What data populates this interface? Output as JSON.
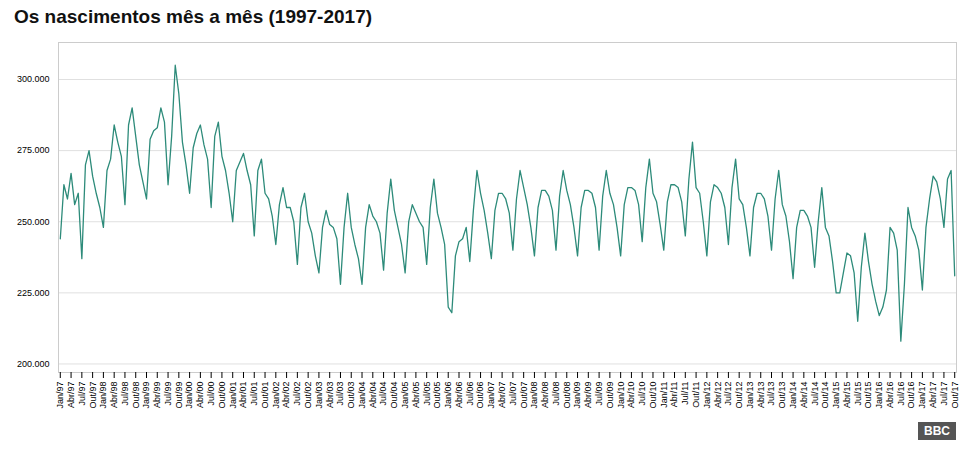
{
  "chart_data": {
    "type": "line",
    "title": "Os nascimentos mês a mês (1997-2017)",
    "color": "#2d8b7a",
    "grid": true,
    "ylim": [
      197000,
      313000
    ],
    "yticks": [
      {
        "value": 200000,
        "label": "200.000"
      },
      {
        "value": 225000,
        "label": "225.000"
      },
      {
        "value": 250000,
        "label": "250.000"
      },
      {
        "value": 275000,
        "label": "275.000"
      },
      {
        "value": 300000,
        "label": "300.000"
      }
    ],
    "annotations": [
      {
        "text": "BBC"
      }
    ],
    "categories": [
      "Jan/97",
      null,
      null,
      "Abr/97",
      null,
      null,
      "Jul/97",
      null,
      null,
      "Out/97",
      null,
      null,
      "Jan/98",
      null,
      null,
      "Abr/98",
      null,
      null,
      "Jul/98",
      null,
      null,
      "Out/98",
      null,
      null,
      "Jan/99",
      null,
      null,
      "Abr/99",
      null,
      null,
      "Jul/99",
      null,
      null,
      "Out/99",
      null,
      null,
      "Jan/00",
      null,
      null,
      "Abr/00",
      null,
      null,
      "Jul/00",
      null,
      null,
      "Out/00",
      null,
      null,
      "Jan/01",
      null,
      null,
      "Abr/01",
      null,
      null,
      "Jul/01",
      null,
      null,
      "Out/01",
      null,
      null,
      "Jan/02",
      null,
      null,
      "Abr/02",
      null,
      null,
      "Jul/02",
      null,
      null,
      "Out/02",
      null,
      null,
      "Jan/03",
      null,
      null,
      "Abr/03",
      null,
      null,
      "Jul/03",
      null,
      null,
      "Out/03",
      null,
      null,
      "Jan/04",
      null,
      null,
      "Abr/04",
      null,
      null,
      "Jul/04",
      null,
      null,
      "Out/04",
      null,
      null,
      "Jan/05",
      null,
      null,
      "Abr/05",
      null,
      null,
      "Jul/05",
      null,
      null,
      "Out/05",
      null,
      null,
      "Jan/06",
      null,
      null,
      "Abr/06",
      null,
      null,
      "Jul/06",
      null,
      null,
      "Out/06",
      null,
      null,
      "Jan/07",
      null,
      null,
      "Abr/07",
      null,
      null,
      "Jul/07",
      null,
      null,
      "Out/07",
      null,
      null,
      "Jan/08",
      null,
      null,
      "Abr/08",
      null,
      null,
      "Jul/08",
      null,
      null,
      "Out/08",
      null,
      null,
      "Jan/09",
      null,
      null,
      "Abr/09",
      null,
      null,
      "Jul/09",
      null,
      null,
      "Out/09",
      null,
      null,
      "Jan/10",
      null,
      null,
      "Abr/10",
      null,
      null,
      "Jul/10",
      null,
      null,
      "Out/10",
      null,
      null,
      "Jan/11",
      null,
      null,
      "Abr/11",
      null,
      null,
      "Jul/11",
      null,
      null,
      "Out/11",
      null,
      null,
      "Jan/12",
      null,
      null,
      "Abr/12",
      null,
      null,
      "Jul/12",
      null,
      null,
      "Out/12",
      null,
      null,
      "Jan/13",
      null,
      null,
      "Abr/13",
      null,
      null,
      "Jul/13",
      null,
      null,
      "Out/13",
      null,
      null,
      "Jan/14",
      null,
      null,
      "Abr/14",
      null,
      null,
      "Jul/14",
      null,
      null,
      "Out/14",
      null,
      null,
      "Jan/15",
      null,
      null,
      "Abr/15",
      null,
      null,
      "Jul/15",
      null,
      null,
      "Out/15",
      null,
      null,
      "Jan/16",
      null,
      null,
      "Abr/16",
      null,
      null,
      "Jul/16",
      null,
      null,
      "Out/16",
      null,
      null,
      "Jan/17",
      null,
      null,
      "Abr/17",
      null,
      null,
      "Jul/17",
      null,
      null,
      "Out/17"
    ],
    "values": [
      244000,
      263000,
      258000,
      267000,
      256000,
      260000,
      237000,
      270000,
      275000,
      266000,
      260000,
      255000,
      248000,
      268000,
      272000,
      284000,
      278000,
      273000,
      256000,
      284000,
      290000,
      280000,
      270000,
      264000,
      258000,
      279000,
      282000,
      283000,
      290000,
      285000,
      263000,
      280000,
      305000,
      295000,
      278000,
      270000,
      260000,
      276000,
      281000,
      284000,
      277000,
      272000,
      255000,
      280000,
      285000,
      273000,
      268000,
      260000,
      250000,
      268000,
      271000,
      274000,
      268000,
      263000,
      245000,
      268000,
      272000,
      260000,
      258000,
      252000,
      242000,
      256000,
      262000,
      255000,
      255000,
      250000,
      235000,
      255000,
      260000,
      250000,
      246000,
      238000,
      232000,
      248000,
      254000,
      249000,
      248000,
      244000,
      228000,
      248000,
      260000,
      248000,
      242000,
      237000,
      228000,
      248000,
      256000,
      252000,
      250000,
      246000,
      233000,
      253000,
      265000,
      254000,
      248000,
      242000,
      232000,
      250000,
      256000,
      253000,
      250000,
      248000,
      235000,
      255000,
      265000,
      253000,
      248000,
      242000,
      220000,
      218000,
      238000,
      243000,
      244000,
      248000,
      236000,
      254000,
      268000,
      260000,
      254000,
      246000,
      237000,
      254000,
      260000,
      260000,
      258000,
      253000,
      240000,
      258000,
      268000,
      262000,
      256000,
      248000,
      238000,
      255000,
      261000,
      261000,
      259000,
      254000,
      240000,
      259000,
      268000,
      261000,
      256000,
      248000,
      238000,
      255000,
      261000,
      261000,
      260000,
      255000,
      240000,
      259000,
      268000,
      260000,
      256000,
      248000,
      238000,
      256000,
      262000,
      262000,
      261000,
      256000,
      243000,
      262000,
      272000,
      260000,
      257000,
      249000,
      240000,
      257000,
      263000,
      263000,
      262000,
      257000,
      245000,
      265000,
      278000,
      262000,
      260000,
      250000,
      238000,
      257000,
      263000,
      262000,
      260000,
      255000,
      242000,
      262000,
      272000,
      258000,
      256000,
      248000,
      238000,
      255000,
      260000,
      260000,
      258000,
      252000,
      240000,
      258000,
      268000,
      256000,
      252000,
      243000,
      230000,
      248000,
      254000,
      254000,
      252000,
      248000,
      234000,
      250000,
      262000,
      248000,
      245000,
      236000,
      225000,
      225000,
      232000,
      239000,
      238000,
      232000,
      215000,
      234000,
      246000,
      236000,
      228000,
      222000,
      217000,
      220000,
      226000,
      248000,
      246000,
      240000,
      208000,
      228000,
      255000,
      248000,
      245000,
      240000,
      226000,
      248000,
      258000,
      266000,
      264000,
      258000,
      248000,
      265000,
      268000,
      231000
    ]
  }
}
